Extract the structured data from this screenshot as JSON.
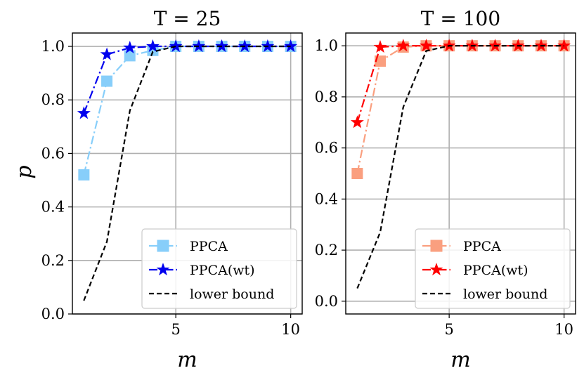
{
  "figure": {
    "ylabel": "p"
  },
  "chart_data": [
    {
      "type": "line",
      "title": "T = 25",
      "xlabel": "m",
      "ylabel": "p",
      "xlim": [
        0.5,
        10.5
      ],
      "ylim": [
        0.0,
        1.05
      ],
      "xticks": [
        5,
        10
      ],
      "yticks": [
        0.0,
        0.2,
        0.4,
        0.6,
        0.8,
        1.0
      ],
      "ytick_labels": [
        "0.0",
        "0.2",
        "0.4",
        "0.6",
        "0.8",
        "1.0"
      ],
      "x": [
        1,
        2,
        3,
        4,
        5,
        6,
        7,
        8,
        9,
        10
      ],
      "grid": true,
      "legend_position": "bottom-right",
      "series": [
        {
          "name": "PPCA",
          "color": "#87cefa",
          "linestyle": "dashdot",
          "marker": "square",
          "values": [
            0.52,
            0.87,
            0.965,
            0.985,
            1.0,
            1.0,
            1.0,
            1.0,
            1.0,
            1.0
          ]
        },
        {
          "name": "PPCA(wt)",
          "color": "#0000ee",
          "linestyle": "dashdot",
          "marker": "star",
          "values": [
            0.75,
            0.97,
            0.995,
            1.0,
            1.0,
            1.0,
            1.0,
            1.0,
            1.0,
            1.0
          ]
        },
        {
          "name": "lower bound",
          "color": "#000000",
          "linestyle": "dashed",
          "marker": "none",
          "values": [
            0.05,
            0.27,
            0.76,
            0.98,
            1.0,
            1.0,
            1.0,
            1.0,
            1.0,
            1.0
          ]
        }
      ]
    },
    {
      "type": "line",
      "title": "T = 100",
      "xlabel": "m",
      "ylabel": "",
      "xlim": [
        0.5,
        10.5
      ],
      "ylim": [
        -0.05,
        1.05
      ],
      "xticks": [
        5,
        10
      ],
      "yticks": [
        0.0,
        0.2,
        0.4,
        0.6,
        0.8,
        1.0
      ],
      "ytick_labels": [
        "0.0",
        "0.2",
        "0.4",
        "0.6",
        "0.8",
        "1.0"
      ],
      "x": [
        1,
        2,
        3,
        4,
        5,
        6,
        7,
        8,
        9,
        10
      ],
      "grid": true,
      "legend_position": "bottom-right",
      "series": [
        {
          "name": "PPCA",
          "color": "#fa9f7f",
          "linestyle": "dashdot",
          "marker": "square",
          "values": [
            0.5,
            0.94,
            0.995,
            1.0,
            1.0,
            1.0,
            1.0,
            1.0,
            1.0,
            1.0
          ]
        },
        {
          "name": "PPCA(wt)",
          "color": "#ff0000",
          "linestyle": "dashdot",
          "marker": "star",
          "values": [
            0.7,
            0.995,
            1.0,
            1.0,
            1.0,
            1.0,
            1.0,
            1.0,
            1.0,
            1.0
          ]
        },
        {
          "name": "lower bound",
          "color": "#000000",
          "linestyle": "dashed",
          "marker": "none",
          "values": [
            0.05,
            0.27,
            0.76,
            0.98,
            1.0,
            1.0,
            1.0,
            1.0,
            1.0,
            1.0
          ]
        }
      ]
    }
  ]
}
